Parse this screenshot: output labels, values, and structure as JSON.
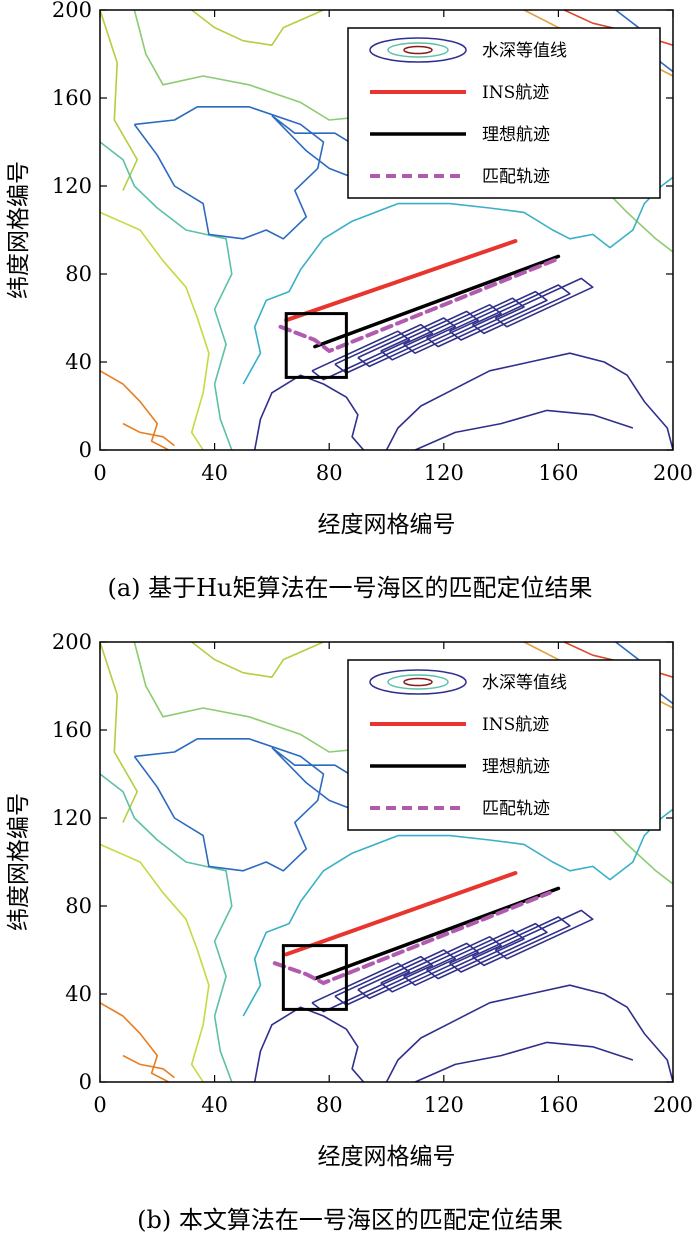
{
  "chart_data": [
    {
      "type": "line",
      "caption": "(a) 基于Hu矩算法在一号海区的匹配定位结果",
      "xlabel": "经度网格编号",
      "ylabel": "纬度网格编号",
      "xlim": [
        0,
        200
      ],
      "ylim": [
        0,
        200
      ],
      "xticks": [
        "0",
        "40",
        "80",
        "120",
        "160",
        "200"
      ],
      "yticks": [
        "0",
        "40",
        "80",
        "120",
        "160",
        "200"
      ],
      "legend_position": "top-right",
      "series": [
        {
          "name": "水深等值线",
          "type": "contour"
        },
        {
          "name": "INS航迹",
          "color": "#e8352e",
          "x": [
            65,
            145
          ],
          "y": [
            59,
            95
          ]
        },
        {
          "name": "理想航迹",
          "color": "#000000",
          "x": [
            75,
            160
          ],
          "y": [
            47,
            88
          ]
        },
        {
          "name": "匹配轨迹",
          "color": "#b05bb0",
          "x": [
            63,
            75,
            80,
            160
          ],
          "y": [
            56,
            50,
            45,
            87
          ]
        }
      ],
      "box": {
        "x": [
          65,
          86
        ],
        "y": [
          33,
          62
        ]
      }
    },
    {
      "type": "line",
      "caption": "(b) 本文算法在一号海区的匹配定位结果",
      "xlabel": "经度网格编号",
      "ylabel": "纬度网格编号",
      "xlim": [
        0,
        200
      ],
      "ylim": [
        0,
        200
      ],
      "xticks": [
        "0",
        "40",
        "80",
        "120",
        "160",
        "200"
      ],
      "yticks": [
        "0",
        "40",
        "80",
        "120",
        "160",
        "200"
      ],
      "legend_position": "top-right",
      "series": [
        {
          "name": "水深等值线",
          "type": "contour"
        },
        {
          "name": "INS航迹",
          "color": "#e8352e",
          "x": [
            65,
            145
          ],
          "y": [
            58,
            95
          ]
        },
        {
          "name": "理想航迹",
          "color": "#000000",
          "x": [
            75,
            160
          ],
          "y": [
            47,
            88
          ]
        },
        {
          "name": "匹配轨迹",
          "color": "#b05bb0",
          "x": [
            61,
            72,
            78,
            157
          ],
          "y": [
            54,
            49,
            45,
            86
          ]
        }
      ],
      "box": {
        "x": [
          64,
          86
        ],
        "y": [
          33,
          62
        ]
      }
    }
  ]
}
